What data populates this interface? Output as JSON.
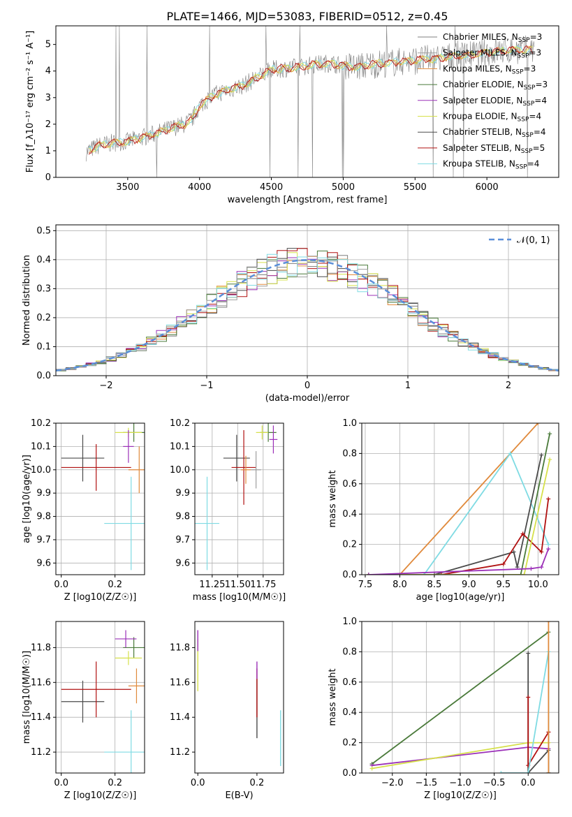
{
  "title": "PLATE=1466, MJD=53083, FIBERID=0512, z=0.45",
  "colors": {
    "series": [
      "#7f7f7f",
      "#9e9e9e",
      "#e08a3c",
      "#4a7a3a",
      "#9b30b8",
      "#d6e04a",
      "#4a4a4a",
      "#b01010",
      "#7fdbe3"
    ],
    "gaussian": "#5b8fd9",
    "grid": "#b0b0b0"
  },
  "chart_data": [
    {
      "id": "spectrum",
      "type": "line",
      "xlabel": "wavelength [Angstrom, rest frame]",
      "ylabel": "Flux [f_λ10⁻¹⁷ erg cm⁻² s⁻¹ A⁻¹]",
      "xlim": [
        3000,
        6500
      ],
      "ylim": [
        0,
        5.7
      ],
      "xticks": [
        "3500",
        "4000",
        "4500",
        "5000",
        "5500",
        "6000"
      ],
      "yticks": [
        "0",
        "1",
        "2",
        "3",
        "4",
        "5"
      ],
      "grid": false,
      "legend_position": "right",
      "legend": [
        "Chabrier MILES, N_SSP=3",
        "Salpeter MILES, N_SSP=3",
        "Kroupa MILES, N_SSP=3",
        "Chabrier ELODIE, N_SSP=3",
        "Salpeter ELODIE, N_SSP=4",
        "Kroupa ELODIE, N_SSP=4",
        "Chabrier STELIB, N_SSP=4",
        "Salpeter STELIB, N_SSP=5",
        "Kroupa STELIB, N_SSP=4"
      ],
      "continuum": {
        "x": [
          3210,
          3300,
          3400,
          3500,
          3600,
          3700,
          3800,
          3900,
          3950,
          4000,
          4100,
          4200,
          4300,
          4400,
          4500,
          4600,
          4700,
          4800,
          4900,
          5000,
          5100,
          5200,
          5300,
          5400,
          5500,
          5600,
          5700,
          5800,
          5900,
          6000,
          6100,
          6200,
          6330
        ],
        "y": [
          0.95,
          1.2,
          1.3,
          1.35,
          1.5,
          1.65,
          1.85,
          2.0,
          2.2,
          2.7,
          3.1,
          3.3,
          3.45,
          3.75,
          4.05,
          4.1,
          4.15,
          4.25,
          4.3,
          4.2,
          4.15,
          4.25,
          4.3,
          4.35,
          4.4,
          4.45,
          4.5,
          4.6,
          4.6,
          4.7,
          4.75,
          4.8,
          4.8
        ]
      }
    },
    {
      "id": "residuals",
      "type": "line",
      "xlabel": "(data-model)/error",
      "ylabel": "Normed distribution",
      "xlim": [
        -2.5,
        2.5
      ],
      "ylim": [
        0,
        0.52
      ],
      "xticks": [
        "−2",
        "−1",
        "0",
        "1",
        "2"
      ],
      "yticks": [
        "0.0",
        "0.1",
        "0.2",
        "0.3",
        "0.4",
        "0.5"
      ],
      "grid": true,
      "legend_position": "top-right",
      "gaussian_label": "𝒩(0, 1)"
    },
    {
      "id": "age-vs-Z",
      "type": "scatter",
      "xlabel": "Z [log10(Z/Z☉)]",
      "ylabel": "age  [log10(age/yr)]",
      "xlim": [
        -0.02,
        0.31
      ],
      "ylim": [
        9.55,
        10.2
      ],
      "xticks": [
        "0.0",
        "0.2"
      ],
      "yticks": [
        "9.6",
        "9.7",
        "9.8",
        "9.9",
        "10.0",
        "10.1",
        "10.2"
      ],
      "grid": true
    },
    {
      "id": "age-vs-mass",
      "type": "scatter",
      "xlabel": "mass [log10(M/M☉)]",
      "ylabel": "",
      "xlim": [
        11.08,
        11.95
      ],
      "ylim": [
        9.55,
        10.2
      ],
      "xticks": [
        "11.25",
        "11.50",
        "11.75"
      ],
      "yticks": [
        "9.6",
        "9.7",
        "9.8",
        "9.9",
        "10.0",
        "10.1",
        "10.2"
      ],
      "grid": true
    },
    {
      "id": "weight-vs-age",
      "type": "line",
      "xlabel": "age  [log10(age/yr)]",
      "ylabel": "mass weight",
      "xlim": [
        7.45,
        10.3
      ],
      "ylim": [
        0,
        1.0
      ],
      "xticks": [
        "7.5",
        "8.0",
        "8.5",
        "9.0",
        "9.5",
        "10.0"
      ],
      "yticks": [
        "0.0",
        "0.2",
        "0.4",
        "0.6",
        "0.8",
        "1.0"
      ],
      "grid": true
    },
    {
      "id": "mass-vs-Z",
      "type": "scatter",
      "xlabel": "Z [log10(Z/Z☉)]",
      "ylabel": "mass [log10(M/M☉)]",
      "xlim": [
        -0.02,
        0.31
      ],
      "ylim": [
        11.08,
        11.95
      ],
      "xticks": [
        "0.0",
        "0.2"
      ],
      "yticks": [
        "11.2",
        "11.4",
        "11.6",
        "11.8"
      ],
      "grid": true
    },
    {
      "id": "mass-vs-EBV",
      "type": "scatter",
      "xlabel": "E(B-V)",
      "ylabel": "",
      "xlim": [
        -0.01,
        0.29
      ],
      "ylim": [
        11.08,
        11.95
      ],
      "xticks": [
        "0.0",
        "0.2"
      ],
      "yticks": [
        "11.2",
        "11.4",
        "11.6",
        "11.8"
      ],
      "grid": false
    },
    {
      "id": "weight-vs-Z",
      "type": "line",
      "xlabel": "Z [log10(Z/Z☉)]",
      "ylabel": "mass weight",
      "xlim": [
        -2.45,
        0.45
      ],
      "ylim": [
        0,
        1.0
      ],
      "xticks": [
        "−2.0",
        "−1.5",
        "−1.0",
        "−0.5",
        "0.0"
      ],
      "yticks": [
        "0.0",
        "0.2",
        "0.4",
        "0.6",
        "0.8",
        "1.0"
      ],
      "grid": true
    }
  ],
  "crosses_ageZ": [
    {
      "c": 6,
      "x": 0.08,
      "y": 10.05,
      "dx": 0.08,
      "dy": 0.1
    },
    {
      "c": 7,
      "x": 0.13,
      "y": 10.01,
      "dx": 0.13,
      "dy": 0.1
    },
    {
      "c": 8,
      "x": 0.26,
      "y": 9.77,
      "dx": 0.1,
      "dy": 0.2
    },
    {
      "c": 3,
      "x": 0.27,
      "y": 10.16,
      "dx": 0.04,
      "dy": 0.04
    },
    {
      "c": 5,
      "x": 0.25,
      "y": 10.16,
      "dx": 0.05,
      "dy": 0.02
    },
    {
      "c": 4,
      "x": 0.25,
      "y": 10.1,
      "dx": 0.02,
      "dy": 0.07
    },
    {
      "c": 2,
      "x": 0.29,
      "y": 10.0,
      "dx": 0.04,
      "dy": 0.1
    }
  ],
  "crosses_agemass": [
    {
      "c": 6,
      "x": 11.49,
      "y": 10.05,
      "dx": 0.13,
      "dy": 0.1
    },
    {
      "c": 7,
      "x": 11.56,
      "y": 10.01,
      "dx": 0.12,
      "dy": 0.16
    },
    {
      "c": 8,
      "x": 11.2,
      "y": 9.77,
      "dx": 0.12,
      "dy": 0.2
    },
    {
      "c": 3,
      "x": 11.8,
      "y": 10.16,
      "dx": 0.08,
      "dy": 0.04
    },
    {
      "c": 5,
      "x": 11.74,
      "y": 10.16,
      "dx": 0.06,
      "dy": 0.03
    },
    {
      "c": 4,
      "x": 11.85,
      "y": 10.13,
      "dx": 0.04,
      "dy": 0.06
    },
    {
      "c": 2,
      "x": 11.58,
      "y": 10.0,
      "dx": 0.05,
      "dy": 0.06
    },
    {
      "c": 1,
      "x": 11.68,
      "y": 10.0,
      "dx": 0.05,
      "dy": 0.08
    }
  ],
  "crosses_massZ": [
    {
      "c": 6,
      "x": 0.08,
      "y": 11.49,
      "dx": 0.08,
      "dy": 0.12
    },
    {
      "c": 7,
      "x": 0.13,
      "y": 11.56,
      "dx": 0.13,
      "dy": 0.16
    },
    {
      "c": 8,
      "x": 0.26,
      "y": 11.2,
      "dx": 0.1,
      "dy": 0.24
    },
    {
      "c": 3,
      "x": 0.27,
      "y": 11.8,
      "dx": 0.04,
      "dy": 0.06
    },
    {
      "c": 5,
      "x": 0.25,
      "y": 11.74,
      "dx": 0.05,
      "dy": 0.04
    },
    {
      "c": 4,
      "x": 0.24,
      "y": 11.85,
      "dx": 0.04,
      "dy": 0.05
    },
    {
      "c": 2,
      "x": 0.28,
      "y": 11.58,
      "dx": 0.03,
      "dy": 0.1
    }
  ],
  "ebv_lines": [
    {
      "c": 5,
      "x": 0.0,
      "y1": 11.55,
      "y2": 11.85
    },
    {
      "c": 4,
      "x": 0.0,
      "y1": 11.78,
      "y2": 11.9
    },
    {
      "c": 6,
      "x": 0.2,
      "y1": 11.28,
      "y2": 11.62
    },
    {
      "c": 7,
      "x": 0.2,
      "y1": 11.4,
      "y2": 11.68
    },
    {
      "c": 4,
      "x": 0.2,
      "y1": 11.62,
      "y2": 11.72
    },
    {
      "c": 8,
      "x": 0.28,
      "y1": 11.12,
      "y2": 11.44
    }
  ],
  "weight_age_lines": [
    {
      "c": 2,
      "pts": [
        [
          7.55,
          0.0
        ],
        [
          8.0,
          0.0
        ],
        [
          10.0,
          1.0
        ]
      ]
    },
    {
      "c": 8,
      "pts": [
        [
          7.55,
          0.0
        ],
        [
          8.35,
          0.0
        ],
        [
          9.6,
          0.8
        ],
        [
          10.15,
          0.2
        ]
      ]
    },
    {
      "c": 6,
      "pts": [
        [
          7.55,
          0.0
        ],
        [
          8.5,
          0.0
        ],
        [
          9.65,
          0.15
        ],
        [
          9.7,
          0.05
        ],
        [
          10.05,
          0.79
        ]
      ]
    },
    {
      "c": 7,
      "pts": [
        [
          7.55,
          0.0
        ],
        [
          8.6,
          0.0
        ],
        [
          9.5,
          0.07
        ],
        [
          9.78,
          0.27
        ],
        [
          10.05,
          0.15
        ],
        [
          10.15,
          0.5
        ]
      ]
    },
    {
      "c": 3,
      "pts": [
        [
          7.55,
          0.0
        ],
        [
          9.75,
          0.0
        ],
        [
          10.17,
          0.93
        ]
      ]
    },
    {
      "c": 5,
      "pts": [
        [
          7.55,
          0.0
        ],
        [
          9.8,
          0.0
        ],
        [
          10.17,
          0.76
        ]
      ]
    },
    {
      "c": 4,
      "pts": [
        [
          7.55,
          0.0
        ],
        [
          9.9,
          0.04
        ],
        [
          10.05,
          0.05
        ],
        [
          10.15,
          0.17
        ]
      ]
    }
  ],
  "weight_Z_lines": [
    {
      "c": 3,
      "pts": [
        [
          -2.3,
          0.06
        ],
        [
          0.3,
          0.93
        ]
      ]
    },
    {
      "c": 4,
      "pts": [
        [
          -2.3,
          0.05
        ],
        [
          0.0,
          0.17
        ],
        [
          0.3,
          0.16
        ]
      ]
    },
    {
      "c": 5,
      "pts": [
        [
          -2.3,
          0.03
        ],
        [
          0.0,
          0.2
        ],
        [
          0.3,
          0.2
        ]
      ]
    },
    {
      "c": 6,
      "pts": [
        [
          0.0,
          0.79
        ],
        [
          0.0,
          0.0
        ],
        [
          0.3,
          0.15
        ],
        [
          0.3,
          0.0
        ]
      ]
    },
    {
      "c": 7,
      "pts": [
        [
          0.0,
          0.5
        ],
        [
          0.0,
          0.05
        ],
        [
          0.3,
          0.27
        ],
        [
          0.3,
          0.0
        ]
      ]
    },
    {
      "c": 8,
      "pts": [
        [
          -0.4,
          0.0
        ],
        [
          0.0,
          0.0
        ],
        [
          0.3,
          0.8
        ],
        [
          0.3,
          0.0
        ]
      ]
    },
    {
      "c": 2,
      "pts": [
        [
          0.3,
          0.0
        ],
        [
          0.3,
          1.0
        ]
      ]
    }
  ]
}
